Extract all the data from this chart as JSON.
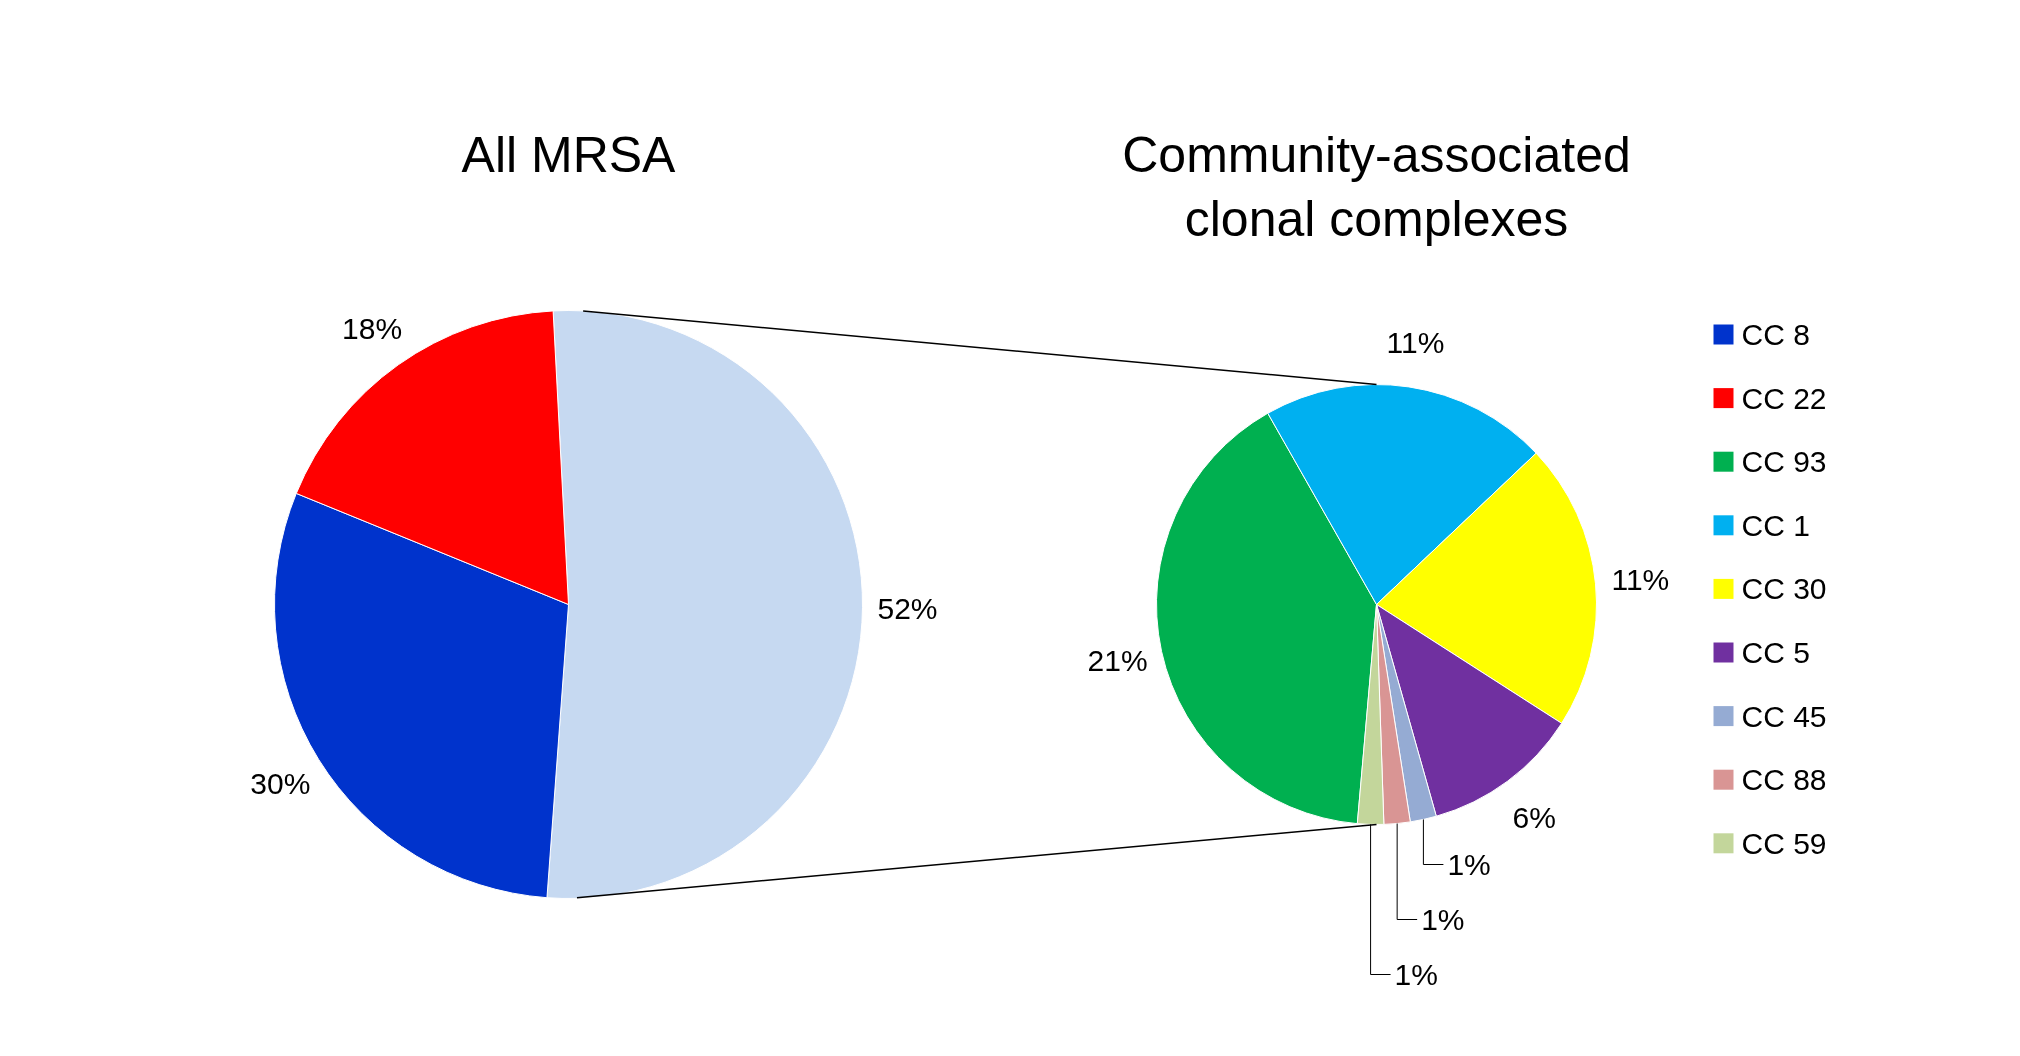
{
  "chart_data": [
    {
      "type": "pie",
      "title": "All MRSA",
      "categories": [
        null,
        "CC 8",
        "CC 22"
      ],
      "values": [
        52,
        30,
        18
      ],
      "colors": [
        "#c6d9f1",
        "#0033cc",
        "#ff0000"
      ],
      "value_labels": [
        "52%",
        "30%",
        "18%"
      ],
      "legend": "right"
    },
    {
      "type": "pie",
      "title": "Community-associated\nclonal complexes",
      "categories": [
        "CC 93",
        "CC 1",
        "CC 30",
        "CC 5",
        "CC 45",
        "CC 88",
        "CC 59"
      ],
      "values": [
        21,
        11,
        11,
        6,
        1,
        1,
        1
      ],
      "colors": [
        "#00b050",
        "#00b0f0",
        "#ffff00",
        "#7030a0",
        "#95abd3",
        "#d99594",
        "#c3d69b"
      ],
      "value_labels": [
        "21%",
        "11%",
        "11%",
        "6%",
        "1%",
        "1%",
        "1%"
      ],
      "legend": "right"
    }
  ]
}
